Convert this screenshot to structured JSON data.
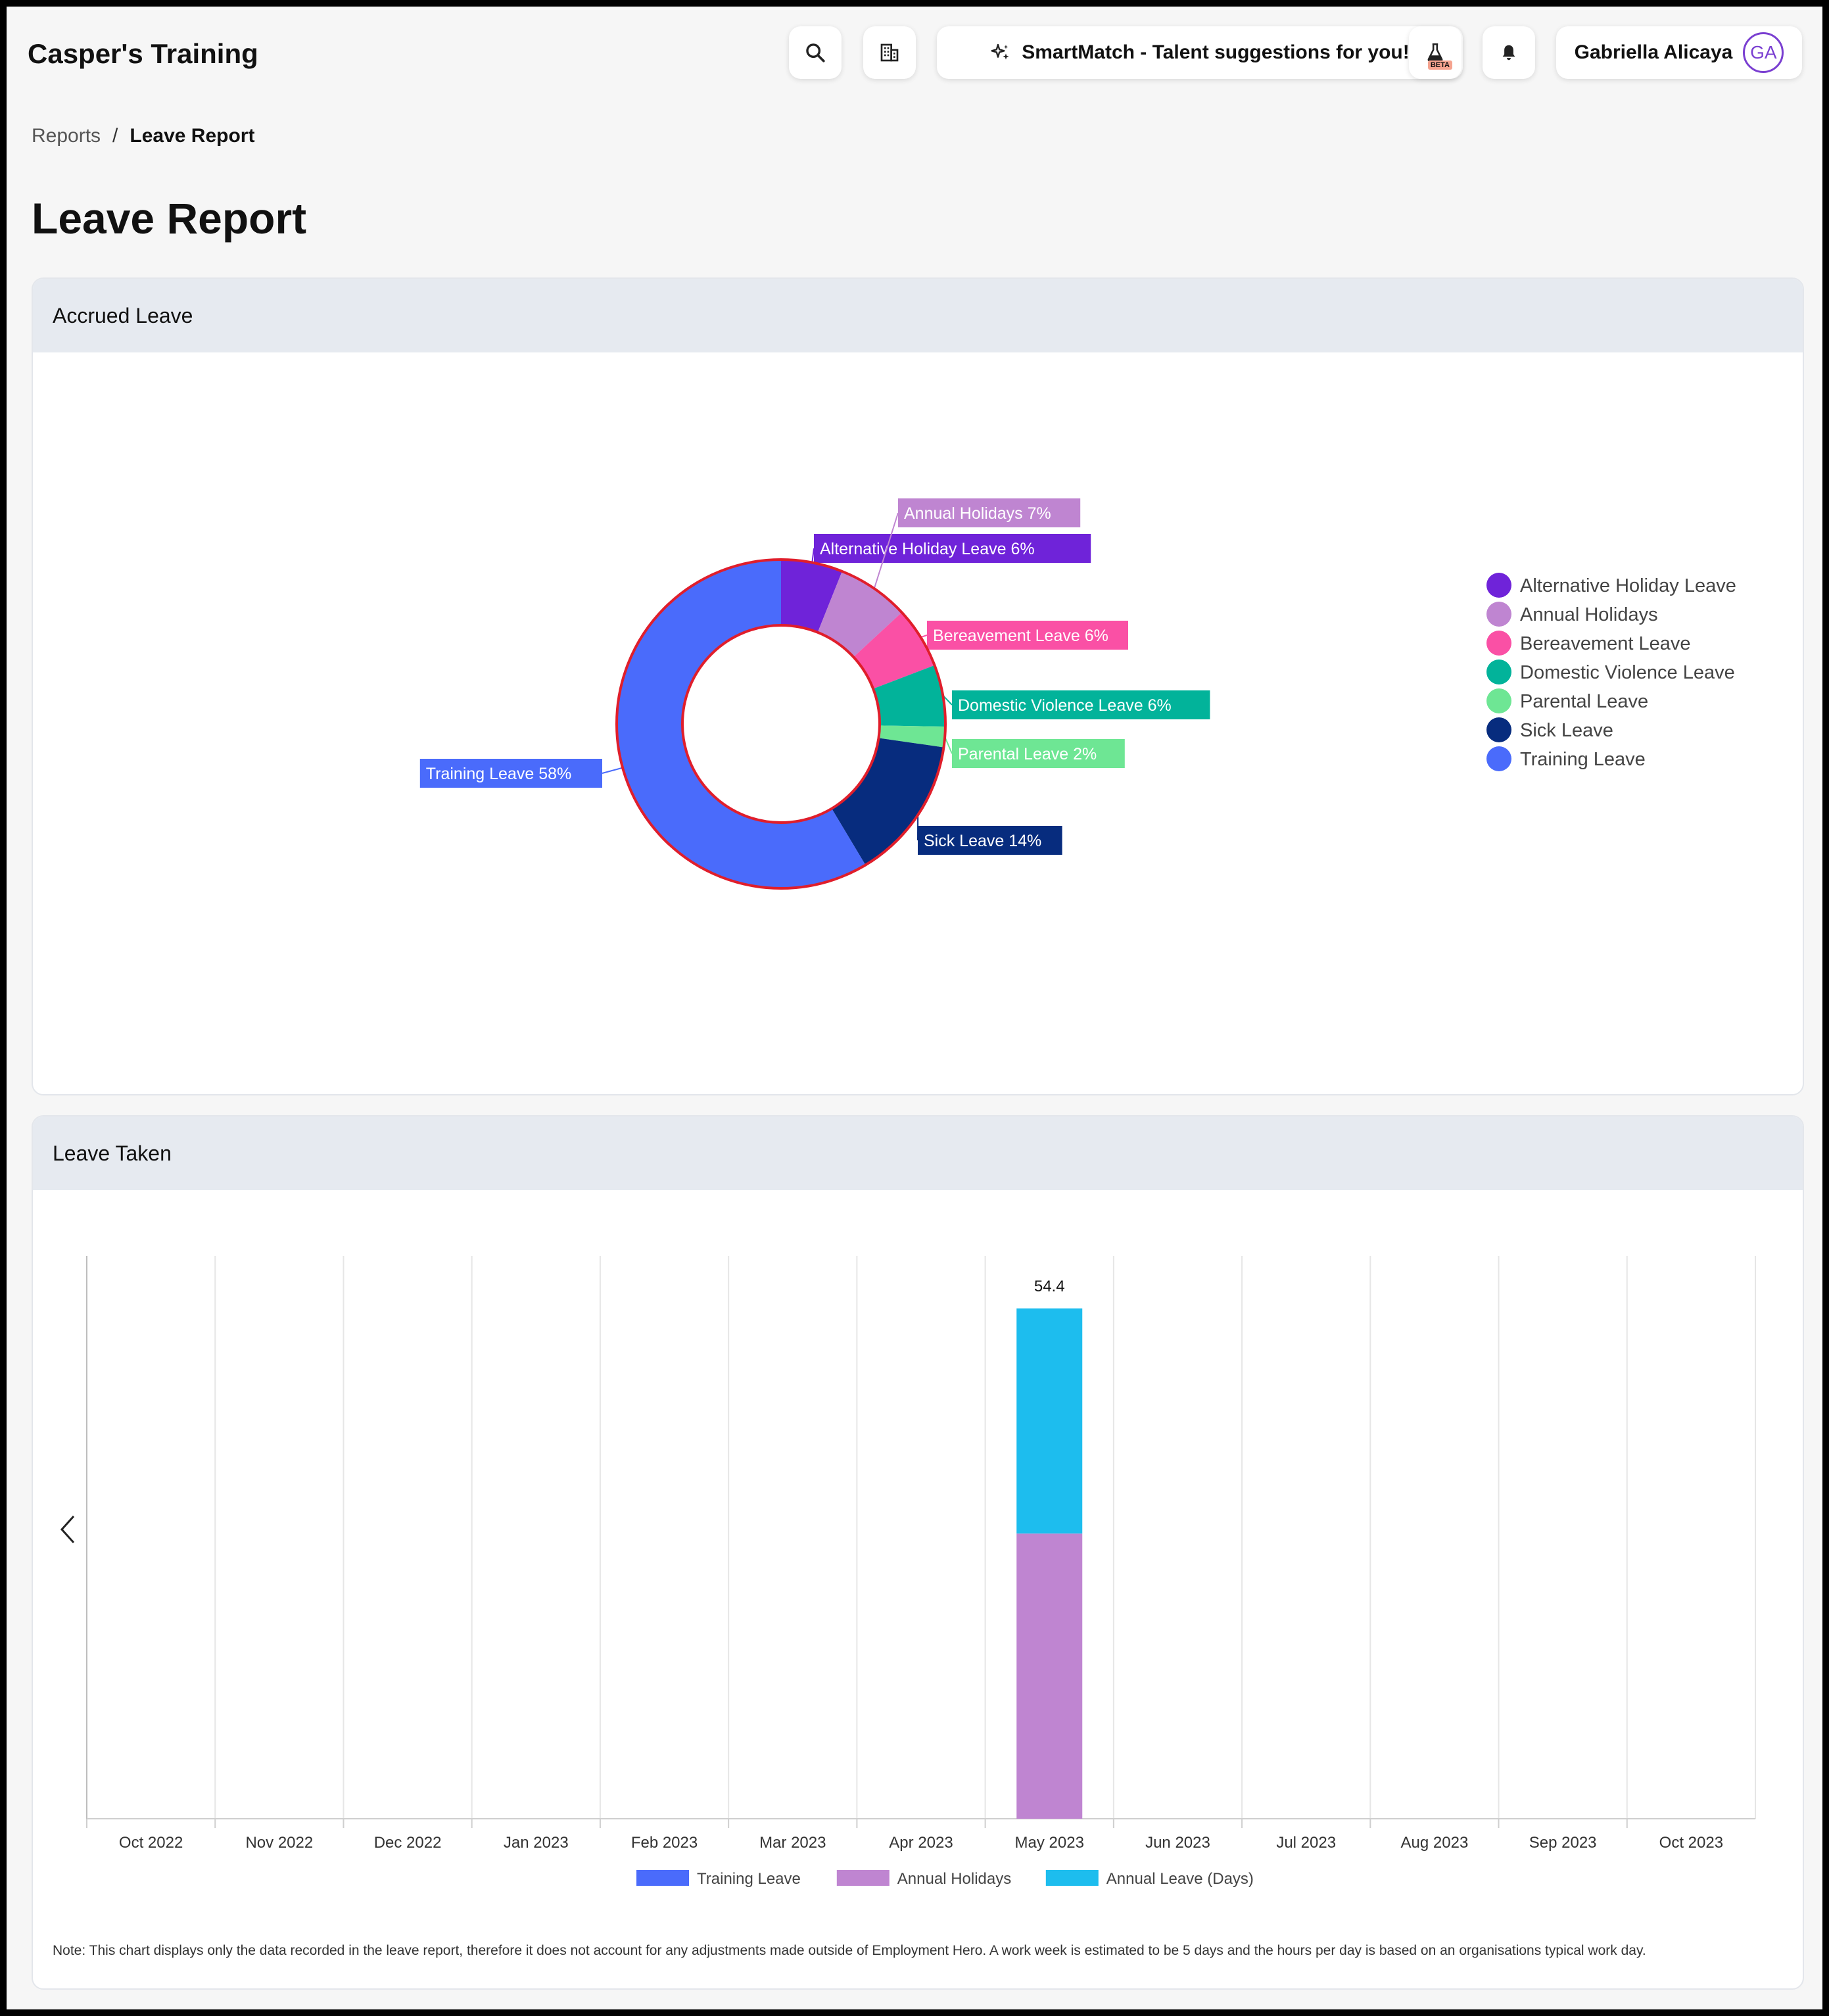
{
  "header": {
    "app_title": "Casper's Training",
    "smartmatch_label": "SmartMatch - Talent suggestions for you!",
    "beta_badge": "BETA",
    "user_name": "Gabriella Alicaya",
    "user_initials": "GA",
    "icons": [
      "search-icon",
      "building-icon",
      "sparkle-icon",
      "flask-icon",
      "bell-icon"
    ]
  },
  "breadcrumb": {
    "parent": "Reports",
    "separator": "/",
    "current": "Leave Report"
  },
  "page_title": "Leave Report",
  "accrued": {
    "title": "Accrued Leave"
  },
  "taken": {
    "title": "Leave Taken",
    "note": "Note: This chart displays only the data recorded in the leave report, therefore it does not account for any adjustments made outside of Employment Hero. A work week is estimated to be 5 days and the hours per day is based on an organisations typical work day."
  },
  "chart_data": [
    {
      "type": "pie",
      "title": "",
      "slices": [
        {
          "label": "Alternative Holiday Leave",
          "value": 6,
          "color": "#6f23d9"
        },
        {
          "label": "Annual Holidays",
          "value": 7,
          "color": "#bf85d1"
        },
        {
          "label": "Bereavement Leave",
          "value": 6,
          "color": "#fa50a5"
        },
        {
          "label": "Domestic Violence Leave",
          "value": 6,
          "color": "#02b39a"
        },
        {
          "label": "Parental Leave",
          "value": 2,
          "color": "#6ee694"
        },
        {
          "label": "Sick Leave",
          "value": 14,
          "color": "#072c7e"
        },
        {
          "label": "Training Leave",
          "value": 58,
          "color": "#4a6bfb"
        }
      ],
      "data_labels": [
        "Alternative Holiday Leave 6%",
        "Annual Holidays 7%",
        "Bereavement Leave 6%",
        "Domestic Violence Leave 6%",
        "Parental Leave 2%",
        "Sick Leave 14%",
        "Training Leave 58%"
      ],
      "legend": [
        "Alternative Holiday Leave",
        "Annual Holidays",
        "Bereavement Leave",
        "Domestic Violence Leave",
        "Parental Leave",
        "Sick Leave",
        "Training Leave"
      ],
      "legend_position": "right",
      "highlight_color": "#e01e2b"
    },
    {
      "type": "bar",
      "stacked": true,
      "title": "",
      "categories": [
        "Oct 2022",
        "Nov 2022",
        "Dec 2022",
        "Jan 2023",
        "Feb 2023",
        "Mar 2023",
        "Apr 2023",
        "May 2023",
        "Jun 2023",
        "Jul 2023",
        "Aug 2023",
        "Sep 2023",
        "Oct 2023"
      ],
      "series": [
        {
          "name": "Training Leave",
          "color": "#4a6bfb",
          "values": [
            0,
            0,
            0,
            0,
            0,
            0,
            0,
            0,
            0,
            0,
            0,
            0,
            0
          ]
        },
        {
          "name": "Annual Holidays",
          "color": "#bf85d1",
          "values": [
            0,
            0,
            0,
            0,
            0,
            0,
            0,
            30.4,
            0,
            0,
            0,
            0,
            0
          ]
        },
        {
          "name": "Annual Leave (Days)",
          "color": "#1dbdee",
          "values": [
            0,
            0,
            0,
            0,
            0,
            0,
            0,
            24,
            0,
            0,
            0,
            0,
            0
          ]
        }
      ],
      "totals": [
        "",
        "",
        "",
        "",
        "",
        "",
        "",
        "54.4",
        "",
        "",
        "",
        "",
        ""
      ],
      "ylim": [
        0,
        60
      ],
      "legend_position": "bottom",
      "grid": true
    }
  ]
}
